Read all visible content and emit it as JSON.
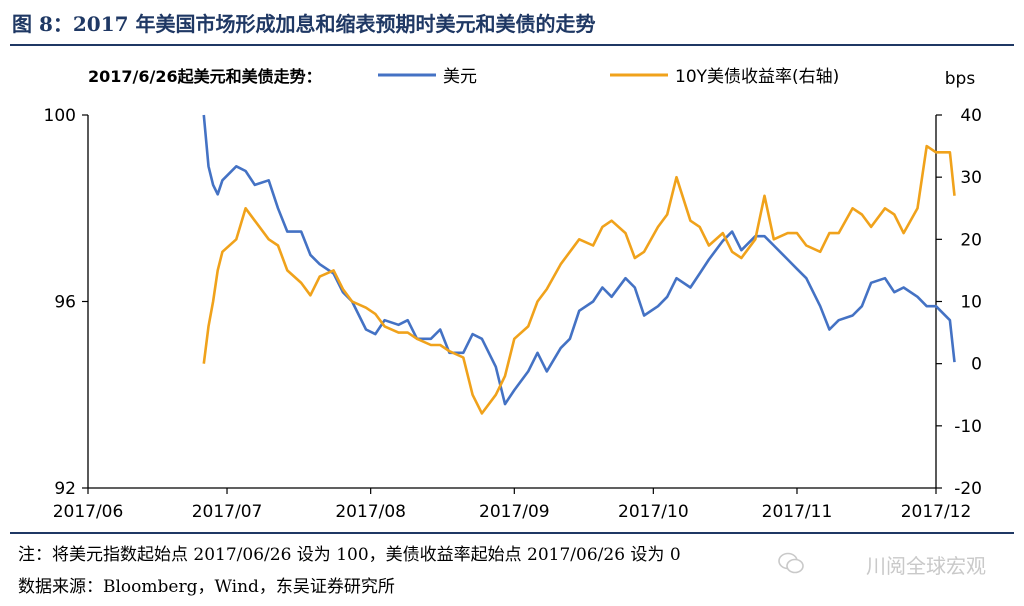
{
  "figure": {
    "title": "图 8：2017 年美国市场形成加息和缩表预期时美元和美债的走势",
    "note": "注：将美元指数起始点 2017/06/26 设为 100，美债收益率起始点 2017/06/26 设为 0",
    "source": "数据来源：Bloomberg，Wind，东吴证券研究所",
    "watermark": "川阅全球宏观",
    "watermark_icon": "wechat-icon"
  },
  "chart_data": {
    "type": "line",
    "title": "2017/6/26起美元和美债走势：",
    "x_ticks": [
      "2017/06",
      "2017/07",
      "2017/08",
      "2017/09",
      "2017/10",
      "2017/11",
      "2017/12"
    ],
    "y_left": {
      "ticks": [
        "100",
        "96",
        "92"
      ],
      "range": [
        92,
        100
      ]
    },
    "y_right": {
      "label": "bps",
      "ticks": [
        "40",
        "30",
        "20",
        "10",
        "0",
        "-10",
        "-20"
      ],
      "range": [
        -20,
        40
      ]
    },
    "grid": false,
    "legend": "top",
    "series": [
      {
        "name": "美元",
        "axis": "left",
        "color": "#4472c4",
        "x": [
          "2017-06-26",
          "2017-06-27",
          "2017-06-28",
          "2017-06-29",
          "2017-06-30",
          "2017-07-03",
          "2017-07-05",
          "2017-07-07",
          "2017-07-10",
          "2017-07-12",
          "2017-07-14",
          "2017-07-17",
          "2017-07-19",
          "2017-07-21",
          "2017-07-24",
          "2017-07-26",
          "2017-07-28",
          "2017-07-31",
          "2017-08-02",
          "2017-08-04",
          "2017-08-07",
          "2017-08-09",
          "2017-08-11",
          "2017-08-14",
          "2017-08-16",
          "2017-08-18",
          "2017-08-21",
          "2017-08-23",
          "2017-08-25",
          "2017-08-28",
          "2017-08-30",
          "2017-09-01",
          "2017-09-04",
          "2017-09-06",
          "2017-09-08",
          "2017-09-11",
          "2017-09-13",
          "2017-09-15",
          "2017-09-18",
          "2017-09-20",
          "2017-09-22",
          "2017-09-25",
          "2017-09-27",
          "2017-09-29",
          "2017-10-02",
          "2017-10-04",
          "2017-10-06",
          "2017-10-09",
          "2017-10-11",
          "2017-10-13",
          "2017-10-16",
          "2017-10-18",
          "2017-10-20",
          "2017-10-23",
          "2017-10-25",
          "2017-10-27",
          "2017-10-30",
          "2017-11-01",
          "2017-11-03",
          "2017-11-06",
          "2017-11-08",
          "2017-11-10",
          "2017-11-13",
          "2017-11-15",
          "2017-11-17",
          "2017-11-20",
          "2017-11-22",
          "2017-11-24",
          "2017-11-27",
          "2017-11-29",
          "2017-12-01",
          "2017-12-04",
          "2017-12-05"
        ],
        "values": [
          100.0,
          98.9,
          98.5,
          98.3,
          98.6,
          98.9,
          98.8,
          98.5,
          98.6,
          98.0,
          97.5,
          97.5,
          97.0,
          96.8,
          96.6,
          96.2,
          96.0,
          95.4,
          95.3,
          95.6,
          95.5,
          95.6,
          95.2,
          95.2,
          95.4,
          94.9,
          94.9,
          95.3,
          95.2,
          94.6,
          93.8,
          94.1,
          94.5,
          94.9,
          94.5,
          95.0,
          95.2,
          95.8,
          96.0,
          96.3,
          96.1,
          96.5,
          96.3,
          95.7,
          95.9,
          96.1,
          96.5,
          96.3,
          96.6,
          96.9,
          97.3,
          97.5,
          97.1,
          97.4,
          97.4,
          97.2,
          96.9,
          96.7,
          96.5,
          95.9,
          95.4,
          95.6,
          95.7,
          95.9,
          96.4,
          96.5,
          96.2,
          96.3,
          96.1,
          95.9,
          95.9,
          95.6,
          94.7
        ]
      },
      {
        "name": "10Y美债收益率(右轴)",
        "axis": "right",
        "color": "#f0a21b",
        "x": [
          "2017-06-26",
          "2017-06-27",
          "2017-06-28",
          "2017-06-29",
          "2017-06-30",
          "2017-07-03",
          "2017-07-05",
          "2017-07-07",
          "2017-07-10",
          "2017-07-12",
          "2017-07-14",
          "2017-07-17",
          "2017-07-19",
          "2017-07-21",
          "2017-07-24",
          "2017-07-26",
          "2017-07-28",
          "2017-07-31",
          "2017-08-02",
          "2017-08-04",
          "2017-08-07",
          "2017-08-09",
          "2017-08-11",
          "2017-08-14",
          "2017-08-16",
          "2017-08-18",
          "2017-08-21",
          "2017-08-23",
          "2017-08-25",
          "2017-08-28",
          "2017-08-30",
          "2017-09-01",
          "2017-09-04",
          "2017-09-06",
          "2017-09-08",
          "2017-09-11",
          "2017-09-13",
          "2017-09-15",
          "2017-09-18",
          "2017-09-20",
          "2017-09-22",
          "2017-09-25",
          "2017-09-27",
          "2017-09-29",
          "2017-10-02",
          "2017-10-04",
          "2017-10-06",
          "2017-10-09",
          "2017-10-11",
          "2017-10-13",
          "2017-10-16",
          "2017-10-18",
          "2017-10-20",
          "2017-10-23",
          "2017-10-25",
          "2017-10-27",
          "2017-10-30",
          "2017-11-01",
          "2017-11-03",
          "2017-11-06",
          "2017-11-08",
          "2017-11-10",
          "2017-11-13",
          "2017-11-15",
          "2017-11-17",
          "2017-11-20",
          "2017-11-22",
          "2017-11-24",
          "2017-11-27",
          "2017-11-29",
          "2017-12-01",
          "2017-12-04",
          "2017-12-05"
        ],
        "values": [
          0,
          6,
          10,
          15,
          18,
          20,
          25,
          23,
          20,
          19,
          15,
          13,
          11,
          14,
          15,
          12,
          10,
          9,
          8,
          6,
          5,
          5,
          4,
          3,
          3,
          2,
          1,
          -5,
          -8,
          -5,
          -2,
          4,
          6,
          10,
          12,
          16,
          18,
          20,
          19,
          22,
          23,
          21,
          17,
          18,
          22,
          24,
          30,
          23,
          22,
          19,
          21,
          18,
          17,
          20,
          27,
          20,
          21,
          21,
          19,
          18,
          21,
          21,
          25,
          24,
          22,
          25,
          24,
          21,
          25,
          35,
          34,
          34,
          27
        ]
      }
    ]
  }
}
